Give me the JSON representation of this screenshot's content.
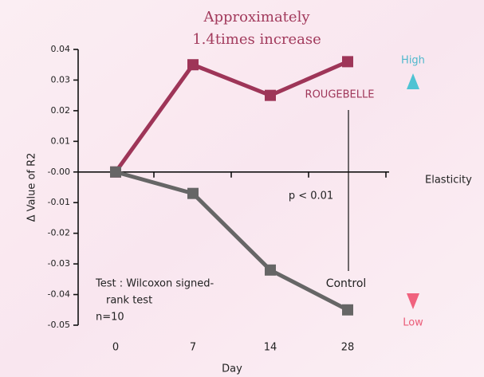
{
  "chart_data": {
    "type": "line",
    "title": [
      "Approximately",
      "1.4times increase"
    ],
    "xlabel": "Day",
    "ylabel": "Δ Value of R2",
    "categories": [
      "0",
      "7",
      "14",
      "28"
    ],
    "series": [
      {
        "name": "ROUGEBELLE",
        "color": "#9e3558",
        "values": [
          0,
          0.035,
          0.025,
          0.036
        ]
      },
      {
        "name": "Control",
        "color": "#666666",
        "values": [
          0,
          -0.007,
          -0.032,
          -0.045
        ]
      }
    ],
    "ylim": [
      -0.05,
      0.04
    ],
    "yticks": [
      0.04,
      0.03,
      0.02,
      0.01,
      {
        "value": 0,
        "label": "-0.00"
      },
      -0.01,
      -0.02,
      -0.03,
      -0.04,
      -0.05
    ],
    "grid": false,
    "significance": "p < 0.01",
    "note": [
      "Test : Wilcoxon signed-",
      "rank test",
      "n=10"
    ],
    "scale_label": "Elasticity",
    "scale_high": "High",
    "scale_low": "Low"
  }
}
